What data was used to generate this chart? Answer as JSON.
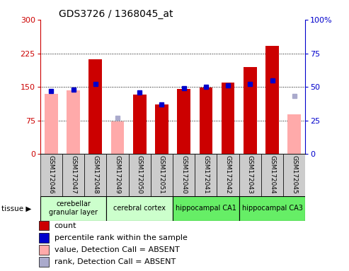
{
  "title": "GDS3726 / 1368045_at",
  "samples": [
    "GSM172046",
    "GSM172047",
    "GSM172048",
    "GSM172049",
    "GSM172050",
    "GSM172051",
    "GSM172040",
    "GSM172041",
    "GSM172042",
    "GSM172043",
    "GSM172044",
    "GSM172045"
  ],
  "count_values": [
    null,
    null,
    212,
    null,
    133,
    110,
    145,
    148,
    160,
    195,
    242,
    null
  ],
  "absent_count_values": [
    135,
    143,
    null,
    72,
    null,
    null,
    null,
    null,
    null,
    null,
    null,
    88
  ],
  "percentile_values": [
    47,
    48,
    52,
    null,
    46,
    37,
    49,
    50,
    51,
    52,
    55,
    null
  ],
  "absent_rank_values": [
    null,
    null,
    null,
    27,
    null,
    null,
    null,
    null,
    null,
    null,
    null,
    43
  ],
  "tissues": [
    {
      "name": "cerebellar\ngranular layer",
      "start": 0,
      "end": 3,
      "color": "#ccffcc"
    },
    {
      "name": "cerebral cortex",
      "start": 3,
      "end": 6,
      "color": "#ccffcc"
    },
    {
      "name": "hippocampal CA1",
      "start": 6,
      "end": 9,
      "color": "#66ee66"
    },
    {
      "name": "hippocampal CA3",
      "start": 9,
      "end": 12,
      "color": "#66ee66"
    }
  ],
  "ylim_left": [
    0,
    300
  ],
  "ylim_right": [
    0,
    100
  ],
  "yticks_left": [
    0,
    75,
    150,
    225,
    300
  ],
  "yticks_right": [
    0,
    25,
    50,
    75,
    100
  ],
  "color_red": "#cc0000",
  "color_pink": "#ffaaaa",
  "color_blue": "#0000cc",
  "color_lightblue": "#aaaacc",
  "bar_width": 0.6,
  "bg_gray": "#cccccc",
  "title_fontsize": 10,
  "tick_fontsize": 8,
  "sample_fontsize": 6.5,
  "tissue_fontsize": 7,
  "legend_fontsize": 8
}
